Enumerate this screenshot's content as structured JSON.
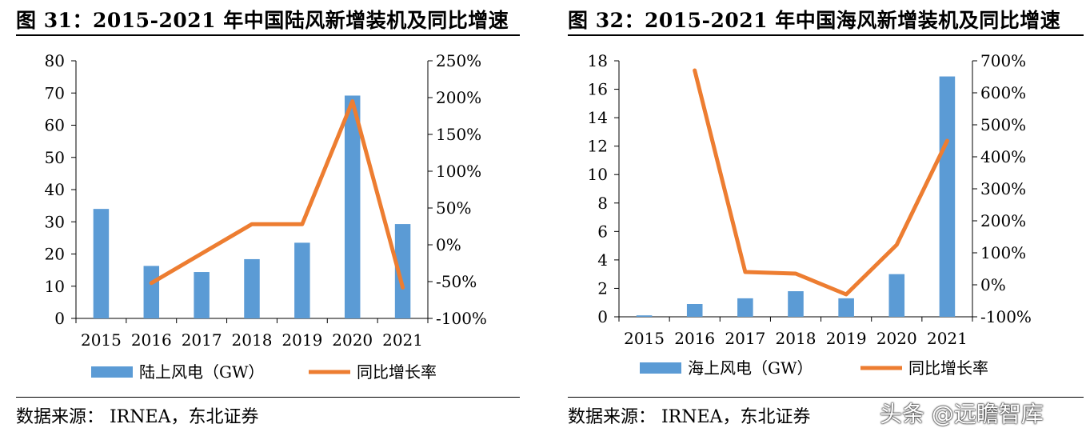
{
  "colors": {
    "bar": "#5b9bd5",
    "line": "#ed7d31",
    "axis": "#000000"
  },
  "chart_data": [
    {
      "type": "bar",
      "title": "图 31：2015-2021 年中国陆风新增装机及同比增速",
      "categories": [
        "2015",
        "2016",
        "2017",
        "2018",
        "2019",
        "2020",
        "2021"
      ],
      "series": [
        {
          "name": "陆上风电（GW）",
          "type": "bar",
          "axis": "left",
          "values": [
            34,
            16.3,
            14.4,
            18.4,
            23.5,
            69.2,
            29.3
          ]
        },
        {
          "name": "同比增长率",
          "type": "line",
          "axis": "right",
          "values": [
            null,
            -52,
            -12,
            28,
            28,
            195,
            -58
          ]
        }
      ],
      "ylim": [
        0,
        80
      ],
      "yticks": [
        0,
        10,
        20,
        30,
        40,
        50,
        60,
        70,
        80
      ],
      "y2lim": [
        -100,
        250
      ],
      "y2ticks": [
        "-100%",
        "-50%",
        "0%",
        "50%",
        "100%",
        "150%",
        "200%",
        "250%"
      ],
      "y2tick_values": [
        -100,
        -50,
        0,
        50,
        100,
        150,
        200,
        250
      ],
      "legend": "bottom",
      "grid": false,
      "source": "数据来源：  IRNEA，东北证券"
    },
    {
      "type": "bar",
      "title": "图 32：2015-2021 年中国海风新增装机及同比增速",
      "categories": [
        "2015",
        "2016",
        "2017",
        "2018",
        "2019",
        "2020",
        "2021"
      ],
      "series": [
        {
          "name": "海上风电（GW）",
          "type": "bar",
          "axis": "left",
          "values": [
            0.1,
            0.9,
            1.3,
            1.8,
            1.3,
            3.0,
            16.9
          ]
        },
        {
          "name": "同比增长率",
          "type": "line",
          "axis": "right",
          "values": [
            null,
            670,
            40,
            35,
            -30,
            125,
            450
          ]
        }
      ],
      "ylim": [
        0,
        18
      ],
      "yticks": [
        0,
        2,
        4,
        6,
        8,
        10,
        12,
        14,
        16,
        18
      ],
      "y2lim": [
        -100,
        700
      ],
      "y2ticks": [
        "-100%",
        "0%",
        "100%",
        "200%",
        "300%",
        "400%",
        "500%",
        "600%",
        "700%"
      ],
      "y2tick_values": [
        -100,
        0,
        100,
        200,
        300,
        400,
        500,
        600,
        700
      ],
      "legend": "bottom",
      "grid": false,
      "source": "数据来源：  IRNEA，东北证券"
    }
  ],
  "watermark": "头条 @远瞻智库"
}
